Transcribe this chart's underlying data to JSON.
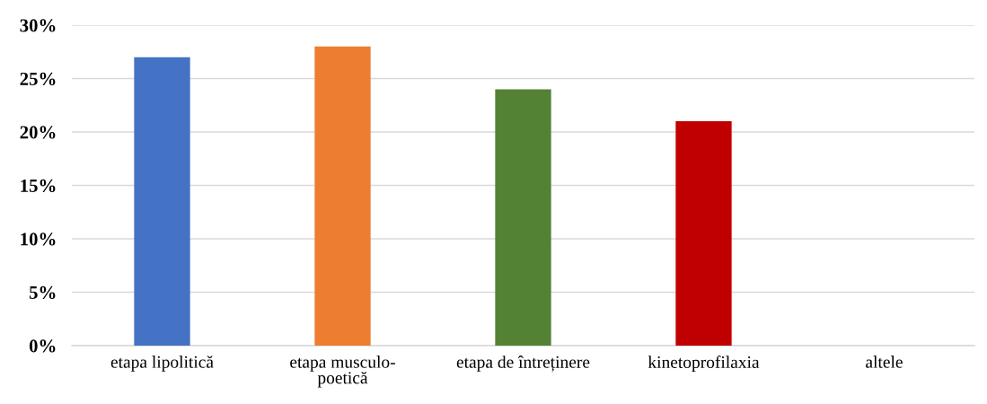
{
  "chart_data": {
    "type": "bar",
    "categories": [
      "etapa lipolitică",
      "etapa musculo-\npoetică",
      "etapa de întreținere",
      "kinetoprofilaxia",
      "altele"
    ],
    "values": [
      27,
      28,
      24,
      21,
      0
    ],
    "colors": [
      "#4472c4",
      "#ed7d31",
      "#548235",
      "#c00000",
      "#ffc000"
    ],
    "ylim": [
      0,
      30
    ],
    "yticks": [
      {
        "value": 0,
        "label": "0%"
      },
      {
        "value": 5,
        "label": "5%"
      },
      {
        "value": 10,
        "label": "10%"
      },
      {
        "value": 15,
        "label": "15%"
      },
      {
        "value": 20,
        "label": "20%"
      },
      {
        "value": 25,
        "label": "25%"
      },
      {
        "value": 30,
        "label": "30%"
      }
    ],
    "grid": "y"
  }
}
